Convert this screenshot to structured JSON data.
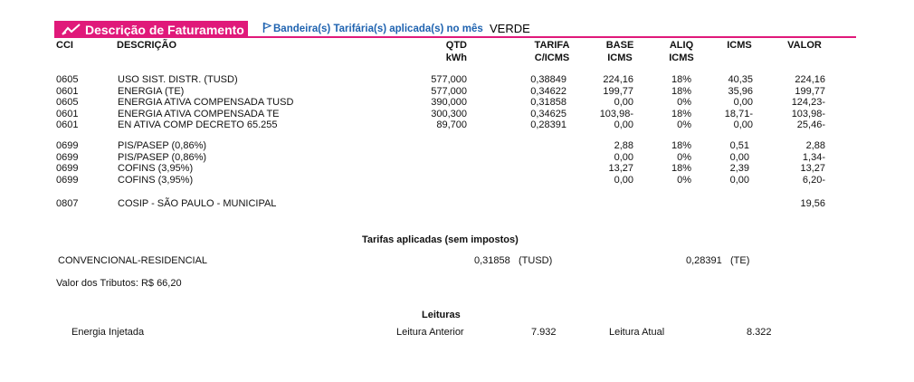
{
  "header": {
    "title": "Descrição de Faturamento",
    "bandeira_label": "Bandeira(s) Tarifária(s) aplicada(s) no mês",
    "bandeira_value": "VERDE"
  },
  "columns": {
    "cci": "CCI",
    "descricao": "DESCRIÇÃO",
    "qtd": "QTD",
    "qtd_unit": "kWh",
    "tarifa": "TARIFA",
    "tarifa_unit": "C/ICMS",
    "base": "BASE",
    "base_unit": "ICMS",
    "aliq": "ALIQ",
    "aliq_unit": "ICMS",
    "icms": "ICMS",
    "valor": "VALOR"
  },
  "group1": {
    "cci": [
      "0605",
      "0601",
      "0605",
      "0601",
      "0601"
    ],
    "descricao": [
      "USO SIST. DISTR. (TUSD)",
      "ENERGIA (TE)",
      "ENERGIA ATIVA COMPENSADA TUSD",
      "ENERGIA ATIVA COMPENSADA TE",
      "EN ATIVA COMP DECRETO 65.255"
    ],
    "qtd": [
      "577,000",
      "577,000",
      "390,000",
      "300,300",
      "89,700"
    ],
    "tarifa": [
      "0,38849",
      "0,34622",
      "0,31858",
      "0,34625",
      "0,28391"
    ],
    "base": [
      "224,16",
      "199,77",
      "0,00",
      "103,98-",
      "0,00"
    ],
    "aliq": [
      "18%",
      "18%",
      "0%",
      "18%",
      "0%"
    ],
    "icms": [
      "40,35",
      "35,96",
      "0,00",
      "18,71-",
      "0,00"
    ],
    "valor": [
      "224,16",
      "199,77",
      "124,23-",
      "103,98-",
      "25,46-"
    ]
  },
  "group2": {
    "cci": [
      "0699",
      "0699",
      "0699",
      "0699"
    ],
    "descricao": [
      "PIS/PASEP (0,86%)",
      "PIS/PASEP (0,86%)",
      "COFINS (3,95%)",
      "COFINS (3,95%)"
    ],
    "base": [
      "2,88",
      "0,00",
      "13,27",
      "0,00"
    ],
    "aliq": [
      "18%",
      "0%",
      "18%",
      "0%"
    ],
    "icms": [
      "0,51",
      "0,00",
      "2,39",
      "0,00"
    ],
    "valor": [
      "2,88",
      "1,34-",
      "13,27",
      "6,20-"
    ]
  },
  "cosip": {
    "cci": "0807",
    "descricao": "COSIP - SÃO PAULO - MUNICIPAL",
    "valor": "19,56"
  },
  "tarifas": {
    "heading": "Tarifas aplicadas (sem impostos)",
    "classe": "CONVENCIONAL-RESIDENCIAL",
    "tusd_value": "0,31858",
    "tusd_label": "(TUSD)",
    "te_value": "0,28391",
    "te_label": "(TE)"
  },
  "tributos": "Valor dos Tributos: R$ 66,20",
  "leituras": {
    "heading": "Leituras",
    "label": "Energia Injetada",
    "anterior_label": "Leitura Anterior",
    "anterior_value": "7.932",
    "atual_label": "Leitura Atual",
    "atual_value": "8.322"
  },
  "colors": {
    "accent": "#e0197a",
    "blue": "#1f63b0"
  }
}
